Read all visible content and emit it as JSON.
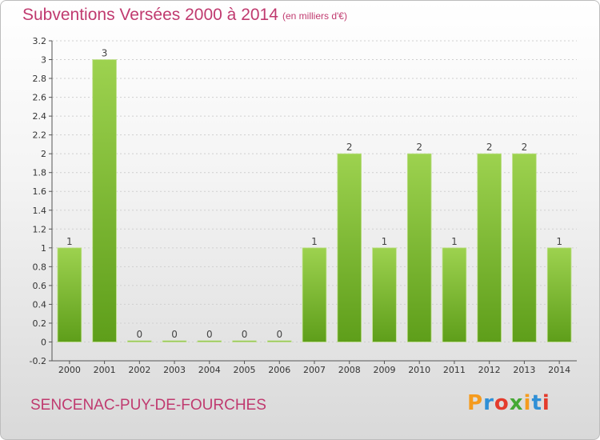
{
  "header": {
    "title": "Subventions Versées 2000 à 2014",
    "subtitle": "(en milliers d'€)"
  },
  "footer": {
    "commune": "SENCENAC-PUY-DE-FOURCHES",
    "logo_text": "Proxiti",
    "logo_colors": [
      "#f59b1e",
      "#2f8fd6",
      "#e43b2c",
      "#46a835",
      "#f59b1e",
      "#2f8fd6",
      "#e43b2c"
    ]
  },
  "colors": {
    "bar_top": "#9dd24f",
    "bar_bottom": "#5e9e1a",
    "grid": "#cfcfcf"
  },
  "chart_data": {
    "type": "bar",
    "title": "Subventions Versées 2000 à 2014",
    "subtitle": "(en milliers d'€)",
    "categories": [
      "2000",
      "2001",
      "2002",
      "2003",
      "2004",
      "2005",
      "2006",
      "2007",
      "2008",
      "2009",
      "2010",
      "2011",
      "2012",
      "2013",
      "2014"
    ],
    "values": [
      1,
      3,
      0,
      0,
      0,
      0,
      0,
      1,
      2,
      1,
      2,
      1,
      2,
      2,
      1
    ],
    "data_labels": [
      "1",
      "3",
      "0",
      "0",
      "0",
      "0",
      "0",
      "1",
      "2",
      "1",
      "2",
      "1",
      "2",
      "2",
      "1"
    ],
    "ylim": [
      -0.2,
      3.2
    ],
    "yticks": [
      "-0.2",
      "0",
      "0.2",
      "0.4",
      "0.6",
      "0.8",
      "1",
      "1.2",
      "1.4",
      "1.6",
      "1.8",
      "2",
      "2.2",
      "2.4",
      "2.6",
      "2.8",
      "3",
      "3.2"
    ],
    "ytick_values": [
      -0.2,
      0,
      0.2,
      0.4,
      0.6,
      0.8,
      1,
      1.2,
      1.4,
      1.6,
      1.8,
      2,
      2.2,
      2.4,
      2.6,
      2.8,
      3,
      3.2
    ],
    "grid": true,
    "legend": "none"
  }
}
